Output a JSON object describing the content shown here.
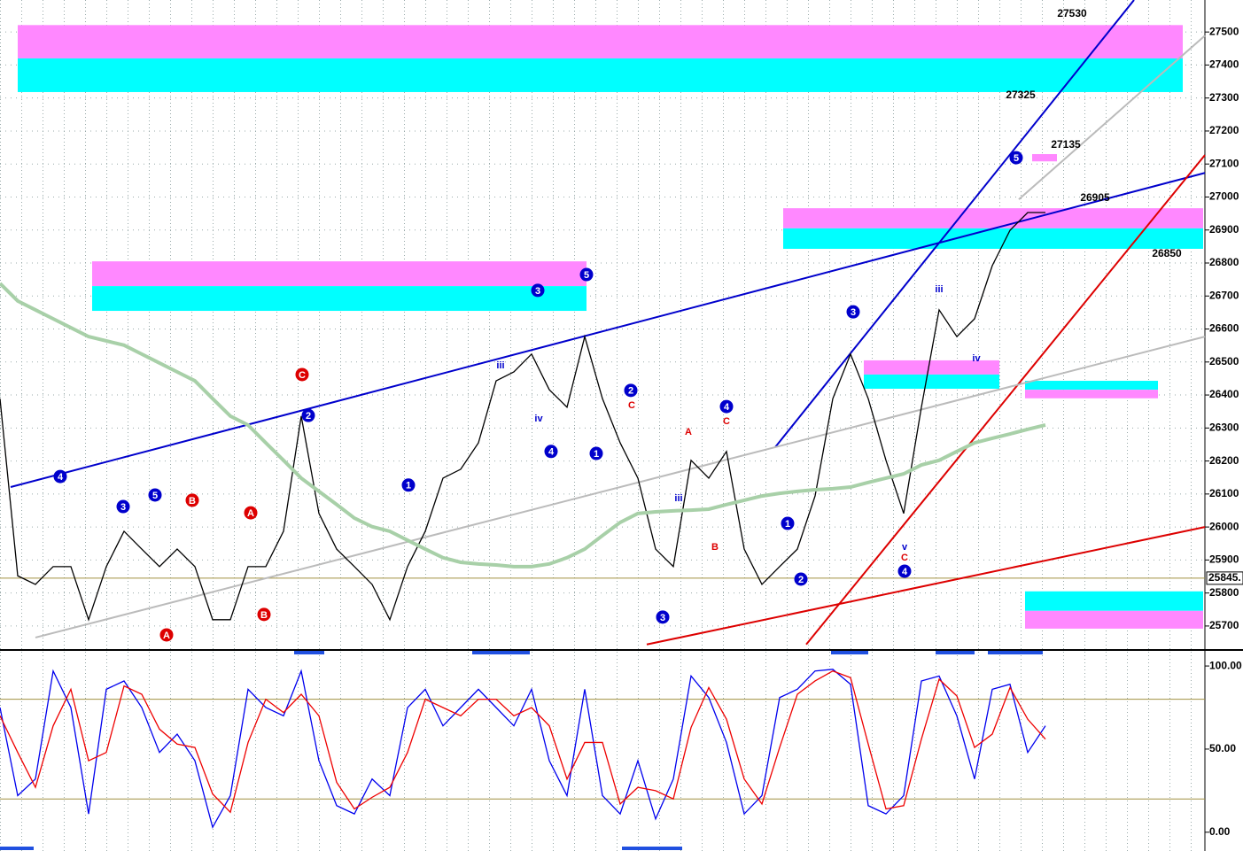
{
  "chart_data": [
    {
      "type": "line",
      "xlim": [
        0,
        68
      ],
      "ylim": [
        25630,
        27597
      ],
      "grid": true,
      "yticks": [
        25700,
        25800,
        25900,
        26000,
        26100,
        26200,
        26300,
        26400,
        26500,
        26600,
        26700,
        26800,
        26900,
        27000,
        27100,
        27200,
        27300,
        27400,
        27500
      ],
      "series": [
        {
          "color": "#000000",
          "values": [
            26389,
            25852,
            25826,
            25880,
            25880,
            25719,
            25880,
            25987,
            25933,
            25880,
            25933,
            25880,
            25719,
            25719,
            25880,
            25880,
            25987,
            26336,
            26041,
            25933,
            25880,
            25826,
            25719,
            25880,
            25987,
            26148,
            26175,
            26255,
            26443,
            26470,
            26524,
            26416,
            26363,
            26577,
            26389,
            26255,
            26148,
            25933,
            25880,
            26202,
            26148,
            26229,
            25933,
            25826,
            25880,
            25933,
            26094,
            26389,
            26524,
            26389,
            26202,
            26041,
            26363,
            26658,
            26577,
            26631,
            26792,
            26899,
            26953,
            26953
          ]
        },
        {
          "color": "#a8d0a8",
          "values": [
            26738,
            26685,
            26658,
            26631,
            26604,
            26577,
            26564,
            26551,
            26524,
            26497,
            26470,
            26443,
            26389,
            26336,
            26309,
            26255,
            26202,
            26148,
            26108,
            26068,
            26027,
            26001,
            25987,
            25960,
            25933,
            25907,
            25893,
            25888,
            25885,
            25880,
            25880,
            25888,
            25907,
            25933,
            25974,
            26014,
            26041,
            26046,
            26049,
            26051,
            26054,
            26068,
            26081,
            26094,
            26102,
            26108,
            26113,
            26116,
            26121,
            26135,
            26148,
            26161,
            26188,
            26202,
            26229,
            26255,
            26269,
            26282,
            26296,
            26309
          ]
        }
      ],
      "zones": [
        {
          "x": [
            1,
            66.75
          ],
          "bands": [
            {
              "range": [
                27420,
                27521
              ],
              "color": "#ff88ff"
            },
            {
              "range": [
                27318,
                27420
              ],
              "color": "#00ffff"
            }
          ]
        },
        {
          "x": [
            5.2,
            33.1
          ],
          "bands": [
            {
              "range": [
                26730,
                26805
              ],
              "color": "#ff88ff"
            },
            {
              "range": [
                26655,
                26730
              ],
              "color": "#00ffff"
            }
          ]
        },
        {
          "x": [
            44.2,
            67.9
          ],
          "bands": [
            {
              "range": [
                26905,
                26966
              ],
              "color": "#ff88ff"
            },
            {
              "range": [
                26843,
                26905
              ],
              "color": "#00ffff"
            }
          ]
        },
        {
          "x": [
            48.75,
            56.4
          ],
          "bands": [
            {
              "range": [
                26462,
                26505
              ],
              "color": "#ff88ff"
            },
            {
              "range": [
                26419,
                26462
              ],
              "color": "#00ffff"
            }
          ]
        },
        {
          "x": [
            57.85,
            65.35
          ],
          "bands": [
            {
              "range": [
                26416,
                26443
              ],
              "color": "#00ffff"
            },
            {
              "range": [
                26390,
                26416
              ],
              "color": "#ff88ff"
            }
          ]
        },
        {
          "x": [
            57.85,
            67.9
          ],
          "bands": [
            {
              "range": [
                25746,
                25805
              ],
              "color": "#00ffff"
            },
            {
              "range": [
                25692,
                25746
              ],
              "color": "#ff88ff"
            }
          ]
        },
        {
          "x": [
            58.25,
            59.65
          ],
          "bands": [
            {
              "range": [
                27108,
                27130
              ],
              "color": "#ff88ff"
            }
          ]
        }
      ],
      "trendlines": [
        {
          "x": [
            0.6,
            68
          ],
          "y": [
            26121,
            27073
          ],
          "color": "#0000cc"
        },
        {
          "x": [
            43.75,
            64
          ],
          "y": [
            26242,
            27597
          ],
          "color": "#0000cc"
        },
        {
          "x": [
            36.5,
            68
          ],
          "y": [
            25644,
            26000
          ],
          "color": "#dd0000"
        },
        {
          "x": [
            45.5,
            68
          ],
          "y": [
            25644,
            27127
          ],
          "color": "#dd0000"
        },
        {
          "x": [
            2,
            68
          ],
          "y": [
            25665,
            26577
          ],
          "color": "#bbbbbb"
        },
        {
          "x": [
            57.5,
            68
          ],
          "y": [
            26993,
            27489
          ],
          "color": "#bbbbbb"
        }
      ],
      "levels": [
        {
          "value": 25845,
          "label": "25845.",
          "color": "#a09040"
        }
      ],
      "annotations": [
        {
          "text": "27530",
          "x": 60.5,
          "y": 27554
        },
        {
          "text": "27325",
          "x": 57.6,
          "y": 27307
        },
        {
          "text": "27135",
          "x": 60.15,
          "y": 27157
        },
        {
          "text": "26905",
          "x": 61.8,
          "y": 26996
        },
        {
          "text": "26850",
          "x": 65.85,
          "y": 26827
        }
      ],
      "wave_labels": [
        {
          "text": "4",
          "x": 3.4,
          "y": 26153,
          "color": "#0000cc",
          "circled": true
        },
        {
          "text": "3",
          "x": 6.95,
          "y": 26062,
          "color": "#0000cc",
          "circled": true
        },
        {
          "text": "5",
          "x": 8.75,
          "y": 26097,
          "color": "#0000cc",
          "circled": true
        },
        {
          "text": "B",
          "x": 10.85,
          "y": 26081,
          "color": "#dd0000",
          "circled": true
        },
        {
          "text": "A",
          "x": 14.15,
          "y": 26043,
          "color": "#dd0000",
          "circled": true
        },
        {
          "text": "C",
          "x": 17.05,
          "y": 26462,
          "color": "#dd0000",
          "circled": true
        },
        {
          "text": "2",
          "x": 17.4,
          "y": 26338,
          "color": "#0000cc",
          "circled": true
        },
        {
          "text": "1",
          "x": 23.05,
          "y": 26127,
          "color": "#0000cc",
          "circled": true
        },
        {
          "text": "3",
          "x": 30.35,
          "y": 26717,
          "color": "#0000cc",
          "circled": true
        },
        {
          "text": "5",
          "x": 33.1,
          "y": 26765,
          "color": "#0000cc",
          "circled": true
        },
        {
          "text": "4",
          "x": 31.1,
          "y": 26229,
          "color": "#0000cc",
          "circled": true
        },
        {
          "text": "2",
          "x": 35.6,
          "y": 26414,
          "color": "#0000cc",
          "circled": true
        },
        {
          "text": "1",
          "x": 33.65,
          "y": 26223,
          "color": "#0000cc",
          "circled": true
        },
        {
          "text": "4",
          "x": 41,
          "y": 26365,
          "color": "#0000cc",
          "circled": true
        },
        {
          "text": "3",
          "x": 37.4,
          "y": 25727,
          "color": "#0000cc",
          "circled": true
        },
        {
          "text": "1",
          "x": 44.45,
          "y": 26011,
          "color": "#0000cc",
          "circled": true
        },
        {
          "text": "2",
          "x": 45.2,
          "y": 25842,
          "color": "#0000cc",
          "circled": true
        },
        {
          "text": "3",
          "x": 48.15,
          "y": 26652,
          "color": "#0000cc",
          "circled": true
        },
        {
          "text": "4",
          "x": 51.05,
          "y": 25866,
          "color": "#0000cc",
          "circled": true
        },
        {
          "text": "5",
          "x": 57.35,
          "y": 27119,
          "color": "#0000cc",
          "circled": true
        },
        {
          "text": "A",
          "x": 9.4,
          "y": 25673,
          "color": "#dd0000",
          "circled": true
        },
        {
          "text": "B",
          "x": 14.9,
          "y": 25735,
          "color": "#dd0000",
          "circled": true
        },
        {
          "text": "iii",
          "x": 53,
          "y": 26722,
          "color": "#0000cc",
          "circled": false
        },
        {
          "text": "iv",
          "x": 55.1,
          "y": 26513,
          "color": "#0000cc",
          "circled": false
        },
        {
          "text": "A",
          "x": 38.85,
          "y": 26290,
          "color": "#dd0000",
          "circled": false
        },
        {
          "text": "B",
          "x": 40.35,
          "y": 25941,
          "color": "#dd0000",
          "circled": false
        },
        {
          "text": "C",
          "x": 35.65,
          "y": 26371,
          "color": "#dd0000",
          "circled": false
        },
        {
          "text": "C",
          "x": 41,
          "y": 26322,
          "color": "#dd0000",
          "circled": false
        },
        {
          "text": "v",
          "x": 51.05,
          "y": 25941,
          "color": "#0000cc",
          "circled": false
        },
        {
          "text": "C",
          "x": 51.05,
          "y": 25909,
          "color": "#dd0000",
          "circled": false
        },
        {
          "text": "iii",
          "x": 28.25,
          "y": 26491,
          "color": "#0000cc",
          "circled": false
        },
        {
          "text": "iv",
          "x": 30.4,
          "y": 26330,
          "color": "#0000cc",
          "circled": false
        },
        {
          "text": "iii",
          "x": 38.3,
          "y": 26089,
          "color": "#0000cc",
          "circled": false
        }
      ]
    },
    {
      "type": "line",
      "xlim": [
        0,
        68
      ],
      "ylim": [
        -11.3,
        109.1
      ],
      "yticks": [
        {
          "value": 100,
          "label": "100.00"
        },
        {
          "value": 50,
          "label": "50.00"
        },
        {
          "value": 0,
          "label": "0.00"
        }
      ],
      "levels": [
        {
          "value": 80,
          "color": "#a09040"
        },
        {
          "value": 20,
          "color": "#a09040"
        }
      ],
      "series": [
        {
          "color": "#0000ee",
          "values": [
            75,
            22,
            32,
            97,
            75,
            11,
            86,
            91,
            75,
            48,
            59,
            43,
            3,
            22,
            86,
            75,
            70,
            97,
            43,
            16,
            11,
            32,
            22,
            75,
            86,
            64,
            75,
            86,
            75,
            64,
            86,
            43,
            22,
            86,
            22,
            11,
            43,
            8,
            32,
            94,
            81,
            54,
            11,
            22,
            81,
            86,
            97,
            98,
            89,
            16,
            11,
            22,
            91,
            94,
            70,
            32,
            86,
            89,
            48,
            64
          ]
        },
        {
          "color": "#ee0000",
          "values": [
            70,
            48,
            27,
            64,
            86,
            43,
            48,
            88,
            83,
            62,
            53,
            51,
            23,
            12,
            54,
            80,
            72,
            83,
            70,
            30,
            14,
            21,
            27,
            48,
            80,
            75,
            70,
            80,
            80,
            70,
            75,
            64,
            32,
            54,
            54,
            17,
            27,
            25,
            20,
            63,
            87,
            68,
            32,
            17,
            51,
            83,
            91,
            97,
            93,
            53,
            14,
            16,
            56,
            92,
            82,
            51,
            59,
            87,
            68,
            56
          ]
        }
      ]
    }
  ]
}
